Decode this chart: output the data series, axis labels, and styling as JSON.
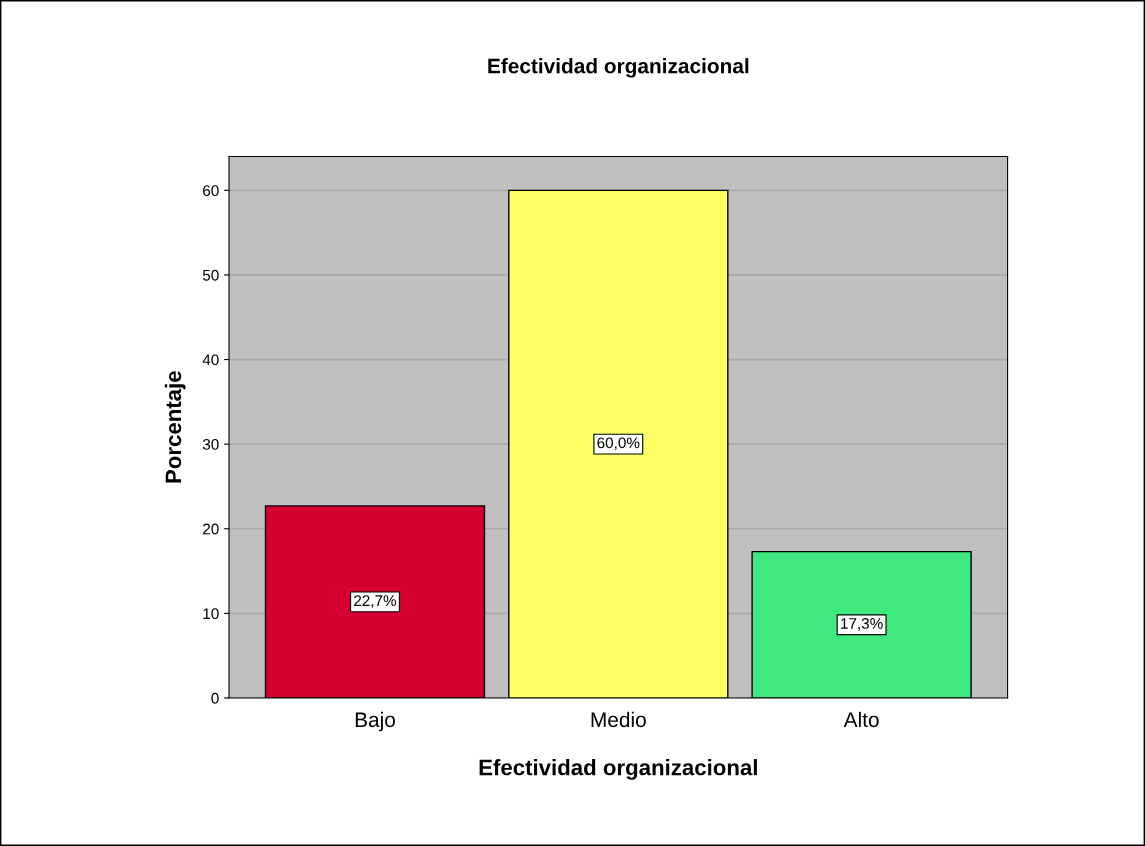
{
  "chart_data": {
    "type": "bar",
    "title": "Efectividad organizacional",
    "xlabel": "Efectividad organizacional",
    "ylabel": "Porcentaje",
    "categories": [
      "Bajo",
      "Medio",
      "Alto"
    ],
    "values": [
      22.7,
      60.0,
      17.3
    ],
    "colors": [
      "#d60030",
      "#ffff66",
      "#40e880"
    ],
    "value_labels": [
      "22,7%",
      "60,0%",
      "17,3%"
    ],
    "ylim": [
      0,
      64
    ],
    "yticks": [
      0,
      10,
      20,
      30,
      40,
      50,
      60
    ],
    "grid": "y"
  }
}
